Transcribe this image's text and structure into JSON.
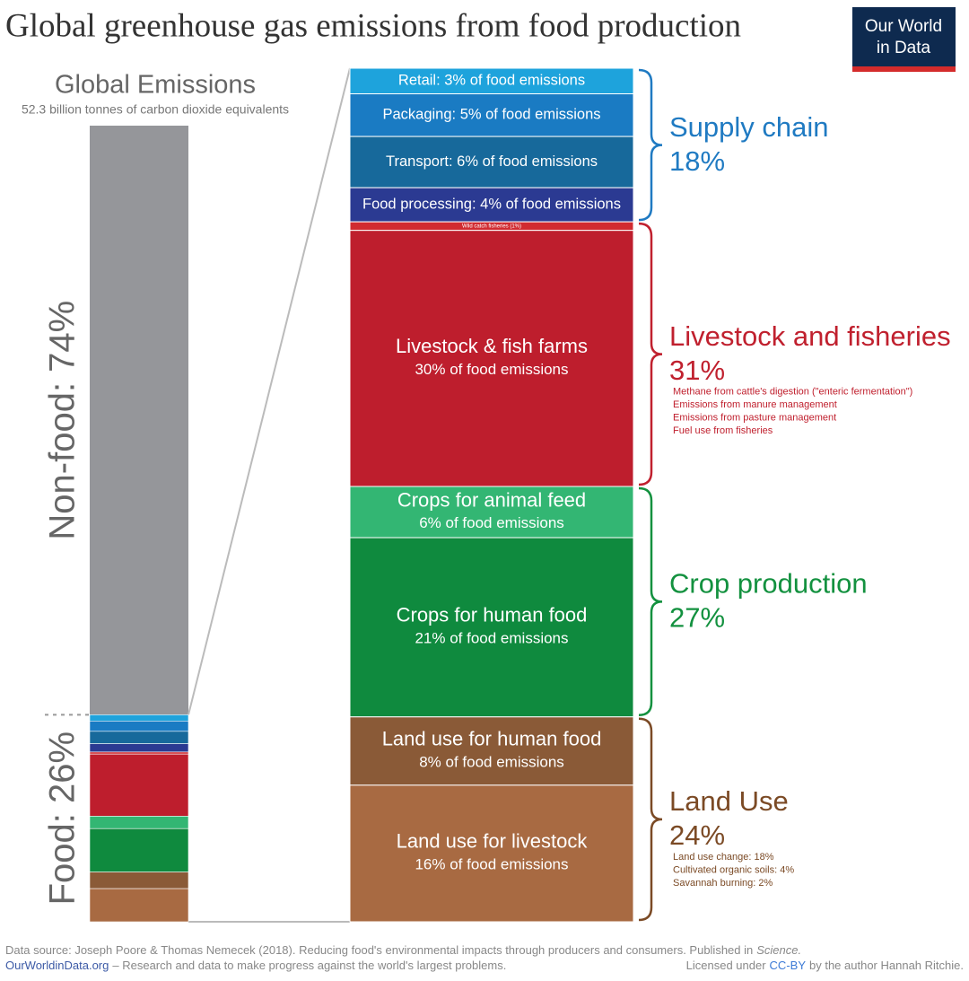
{
  "chart_data": {
    "type": "zoom-stack",
    "title": "Global greenhouse gas emissions from food production",
    "logo": [
      "Our World",
      "in Data"
    ],
    "left_title": "Global Emissions",
    "left_subtitle": "52.3 billion tonnes of carbon dioxide equivalents",
    "left_color": "#95969a",
    "left_series": [
      {
        "name": "Non-food",
        "value": 74,
        "value_label": "Non-food: 74%"
      },
      {
        "name": "Food",
        "value": 26,
        "value_label": "Food: 26%"
      }
    ],
    "groups": [
      {
        "name": "Supply chain",
        "value": 18,
        "value_label": "18%",
        "color": "#1f7ac2",
        "notes": [],
        "segments": [
          {
            "label": "Retail: 3% of food emissions",
            "value": 3,
            "color": "#1ea3dc"
          },
          {
            "label": "Packaging: 5% of food emissions",
            "value": 5,
            "color": "#1a7bc3"
          },
          {
            "label": "Transport: 6% of food emissions",
            "value": 6,
            "color": "#17699b"
          },
          {
            "label": "Food processing: 4% of food emissions",
            "value": 4,
            "color": "#2b3a92"
          }
        ]
      },
      {
        "name": "Livestock and fisheries",
        "value": 31,
        "value_label": "31%",
        "color": "#c0202e",
        "notes": [
          "Methane from cattle's digestion (\"enteric fermentation\")",
          "Emissions from manure management",
          "Emissions from pasture management",
          "Fuel use from fisheries"
        ],
        "segments": [
          {
            "label": "Wild catch fisheries (1%)",
            "value": 1,
            "color": "#d12b30"
          },
          {
            "label": "Livestock & fish farms",
            "detail": "30% of food emissions",
            "value": 30,
            "color": "#be1e2d"
          }
        ]
      },
      {
        "name": "Crop production",
        "value": 27,
        "value_label": "27%",
        "color": "#13913f",
        "notes": [],
        "segments": [
          {
            "label": "Crops for animal feed",
            "detail": "6% of food emissions",
            "value": 6,
            "color": "#33b673"
          },
          {
            "label": "Crops for human food",
            "detail": "21% of food emissions",
            "value": 21,
            "color": "#0f8a3e"
          }
        ]
      },
      {
        "name": "Land Use",
        "value": 24,
        "value_label": "24%",
        "color": "#7b4a25",
        "notes": [
          "Land use change: 18%",
          "Cultivated organic soils: 4%",
          "Savannah burning: 2%"
        ],
        "segments": [
          {
            "label": "Land use for human food",
            "detail": "8% of food emissions",
            "value": 8,
            "color": "#8a5a37"
          },
          {
            "label": "Land use for livestock",
            "detail": "16% of food emissions",
            "value": 16,
            "color": "#a86a42"
          }
        ]
      }
    ],
    "source": "Data source: Joseph Poore & Thomas Nemecek (2018). Reducing food's environmental impacts through producers and consumers. Published in",
    "source_journal": "Science.",
    "site": "OurWorldinData.org",
    "tagline": "– Research and data to make progress against the world's largest problems.",
    "license_prefix": "Licensed under",
    "license": "CC-BY",
    "license_suffix": "by the author Hannah Ritchie."
  }
}
